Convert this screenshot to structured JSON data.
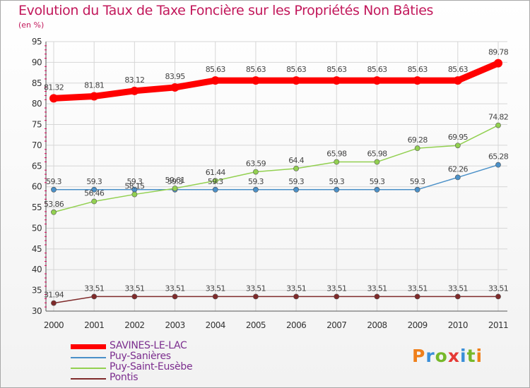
{
  "title": "Evolution du Taux de Taxe Foncière sur les Propriétés Non Bâties",
  "unit": "(en %)",
  "logo": {
    "text": "Proxiti",
    "letter_colors": [
      "#ef7f1a",
      "#3a8fd9",
      "#76b82a",
      "#e53935",
      "#3a8fd9",
      "#76b82a",
      "#ef7f1a"
    ]
  },
  "chart_data": {
    "type": "line",
    "title": "Evolution du Taux de Taxe Foncière sur les Propriétés Non Bâties",
    "ylabel": "(en %)",
    "xlabel": "",
    "ylim": [
      30,
      95
    ],
    "yticks": [
      30,
      35,
      40,
      45,
      50,
      55,
      60,
      65,
      70,
      75,
      80,
      85,
      90,
      95
    ],
    "grid": true,
    "x": [
      "2000",
      "2001",
      "2002",
      "2003",
      "2004",
      "2005",
      "2006",
      "2007",
      "2008",
      "2009",
      "2010",
      "2011"
    ],
    "series": [
      {
        "name": "SAVINES-LE-LAC",
        "color": "#ff0000",
        "bold": true,
        "values": [
          81.32,
          81.81,
          83.12,
          83.95,
          85.63,
          85.63,
          85.63,
          85.63,
          85.63,
          85.63,
          85.63,
          89.78
        ],
        "labels": [
          "81.32",
          "81.81",
          "83.12",
          "83.95",
          "85.63",
          "85.63",
          "85.63",
          "85.63",
          "85.63",
          "85.63",
          "85.63",
          "89.78"
        ]
      },
      {
        "name": "Puy-Sanières",
        "color": "#4a90c8",
        "values": [
          59.3,
          59.3,
          59.3,
          59.3,
          59.3,
          59.3,
          59.3,
          59.3,
          59.3,
          59.3,
          62.26,
          65.28
        ],
        "labels": [
          "59.3",
          "59.3",
          "59.3",
          "59.3",
          "59.3",
          "59.3",
          "59.3",
          "59.3",
          "59.3",
          "59.3",
          "62.26",
          "65.28"
        ]
      },
      {
        "name": "Puy-Saint-Eusèbe",
        "color": "#92d050",
        "values": [
          53.86,
          56.46,
          58.15,
          59.61,
          61.44,
          63.59,
          64.4,
          65.98,
          65.98,
          69.28,
          69.95,
          74.82
        ],
        "labels": [
          "53.86",
          "56.46",
          "58.15",
          "59.61",
          "61.44",
          "63.59",
          "64.4",
          "65.98",
          "65.98",
          "69.28",
          "69.95",
          "74.82"
        ]
      },
      {
        "name": "Pontis",
        "color": "#7f2a2a",
        "values": [
          31.94,
          33.51,
          33.51,
          33.51,
          33.51,
          33.51,
          33.51,
          33.51,
          33.51,
          33.51,
          33.51,
          33.51
        ],
        "labels": [
          "31.94",
          "33.51",
          "33.51",
          "33.51",
          "33.51",
          "33.51",
          "33.51",
          "33.51",
          "33.51",
          "33.51",
          "33.51",
          "33.51"
        ]
      }
    ]
  }
}
